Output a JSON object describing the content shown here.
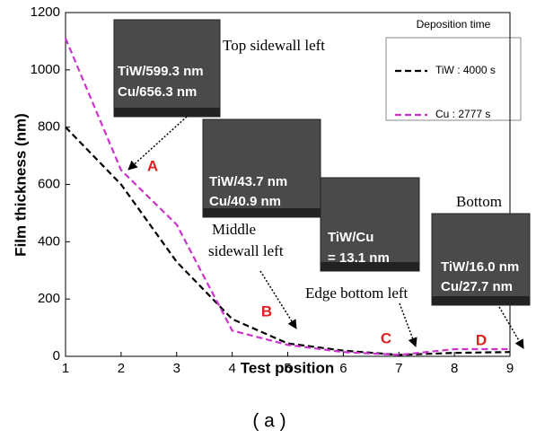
{
  "chart_data": {
    "type": "line",
    "xlabel": "Test position",
    "ylabel": "Film thickness (nm)",
    "caption": "( a )",
    "x": [
      1,
      2,
      3,
      4,
      5,
      6,
      7,
      8,
      9
    ],
    "series": [
      {
        "name": "TiW : 4000 s",
        "color": "#000000",
        "values": [
          800,
          600,
          330,
          130,
          45,
          20,
          5,
          12,
          15
        ]
      },
      {
        "name": "Cu : 2777 s",
        "color": "#cc33cc",
        "values": [
          1110,
          650,
          460,
          90,
          40,
          15,
          5,
          25,
          25
        ]
      }
    ],
    "xlim": [
      1,
      9
    ],
    "xticks": [
      1,
      2,
      3,
      4,
      5,
      6,
      7,
      8,
      9
    ],
    "ylim": [
      0,
      1200
    ],
    "yticks": [
      0,
      200,
      400,
      600,
      800,
      1000,
      1200
    ],
    "legend_title": "Deposition time",
    "annotations": [
      {
        "text": "Top sidewall left",
        "lines": [
          "TiW/599.3 nm",
          "Cu/656.3 nm"
        ],
        "label": "A"
      },
      {
        "text": "Middle sidewall left",
        "lines": [
          "TiW/43.7 nm",
          "Cu/40.9 nm"
        ],
        "label": "B"
      },
      {
        "text": "Edge bottom left",
        "lines": [
          "TiW/Cu",
          "= 13.1 nm"
        ],
        "label": "C"
      },
      {
        "text": "Bottom",
        "lines": [
          "TiW/16.0 nm",
          "Cu/27.7 nm"
        ],
        "label": "D"
      }
    ]
  }
}
